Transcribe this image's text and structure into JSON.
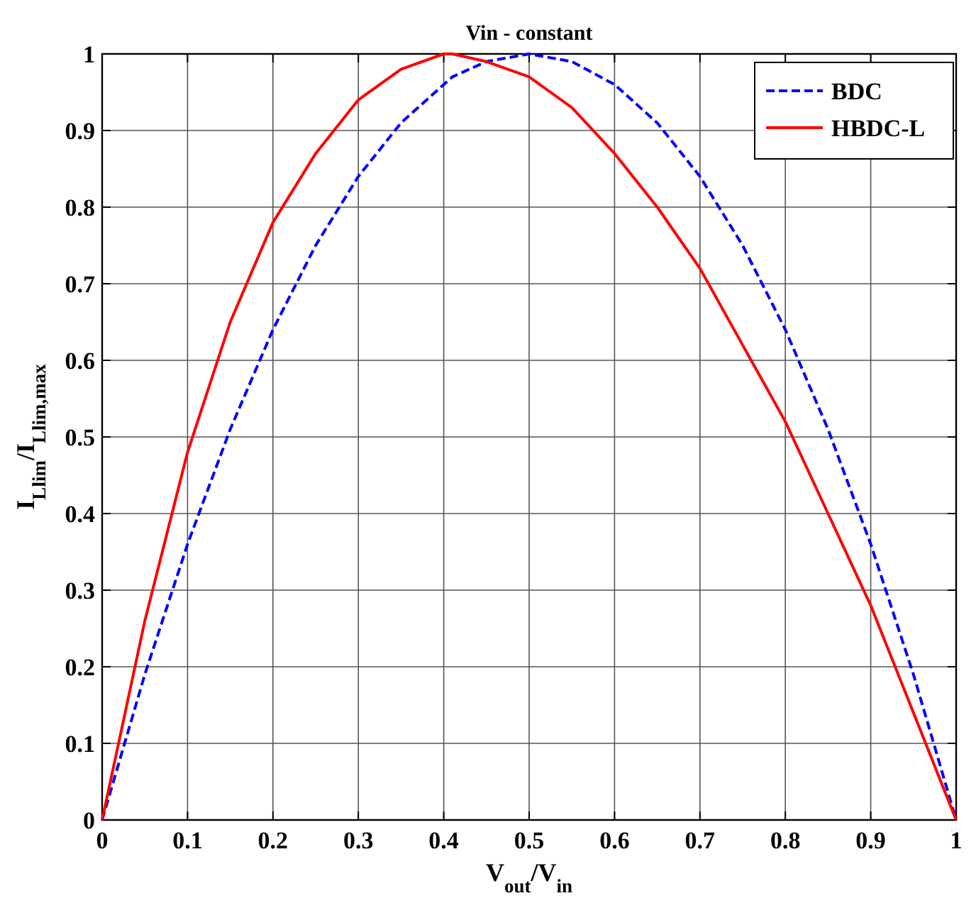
{
  "chart_data": {
    "type": "line",
    "title": "Vin - constant",
    "xlabel": "V$_{out}$/V$_{in}$",
    "ylabel": "I$_{Llim}$/I$_{Llim,max}$",
    "x": [
      0,
      0.05,
      0.1,
      0.15,
      0.2,
      0.25,
      0.3,
      0.35,
      0.4,
      0.41,
      0.45,
      0.5,
      0.55,
      0.6,
      0.65,
      0.7,
      0.75,
      0.8,
      0.85,
      0.9,
      0.95,
      1
    ],
    "series": [
      {
        "name": "BDC",
        "color": "#0000ff",
        "line_style": "dashed",
        "values": [
          0,
          0.19,
          0.36,
          0.51,
          0.64,
          0.75,
          0.84,
          0.91,
          0.96,
          0.97,
          0.99,
          1,
          0.99,
          0.96,
          0.91,
          0.84,
          0.75,
          0.64,
          0.51,
          0.36,
          0.19,
          0
        ]
      },
      {
        "name": "HBDC-L",
        "color": "#ff0000",
        "line_style": "solid",
        "values": [
          0,
          0.26,
          0.48,
          0.65,
          0.78,
          0.87,
          0.94,
          0.98,
          1,
          1,
          0.99,
          0.97,
          0.93,
          0.87,
          0.8,
          0.72,
          0.62,
          0.52,
          0.4,
          0.28,
          0.14,
          0
        ]
      }
    ],
    "xlim": [
      0,
      1
    ],
    "ylim": [
      0,
      1
    ],
    "xticks": [
      0,
      0.1,
      0.2,
      0.3,
      0.4,
      0.5,
      0.6,
      0.7,
      0.8,
      0.9,
      1
    ],
    "yticks": [
      0,
      0.1,
      0.2,
      0.3,
      0.4,
      0.5,
      0.6,
      0.7,
      0.8,
      0.9,
      1
    ],
    "grid": true,
    "legend": "top right",
    "marker": "none"
  }
}
